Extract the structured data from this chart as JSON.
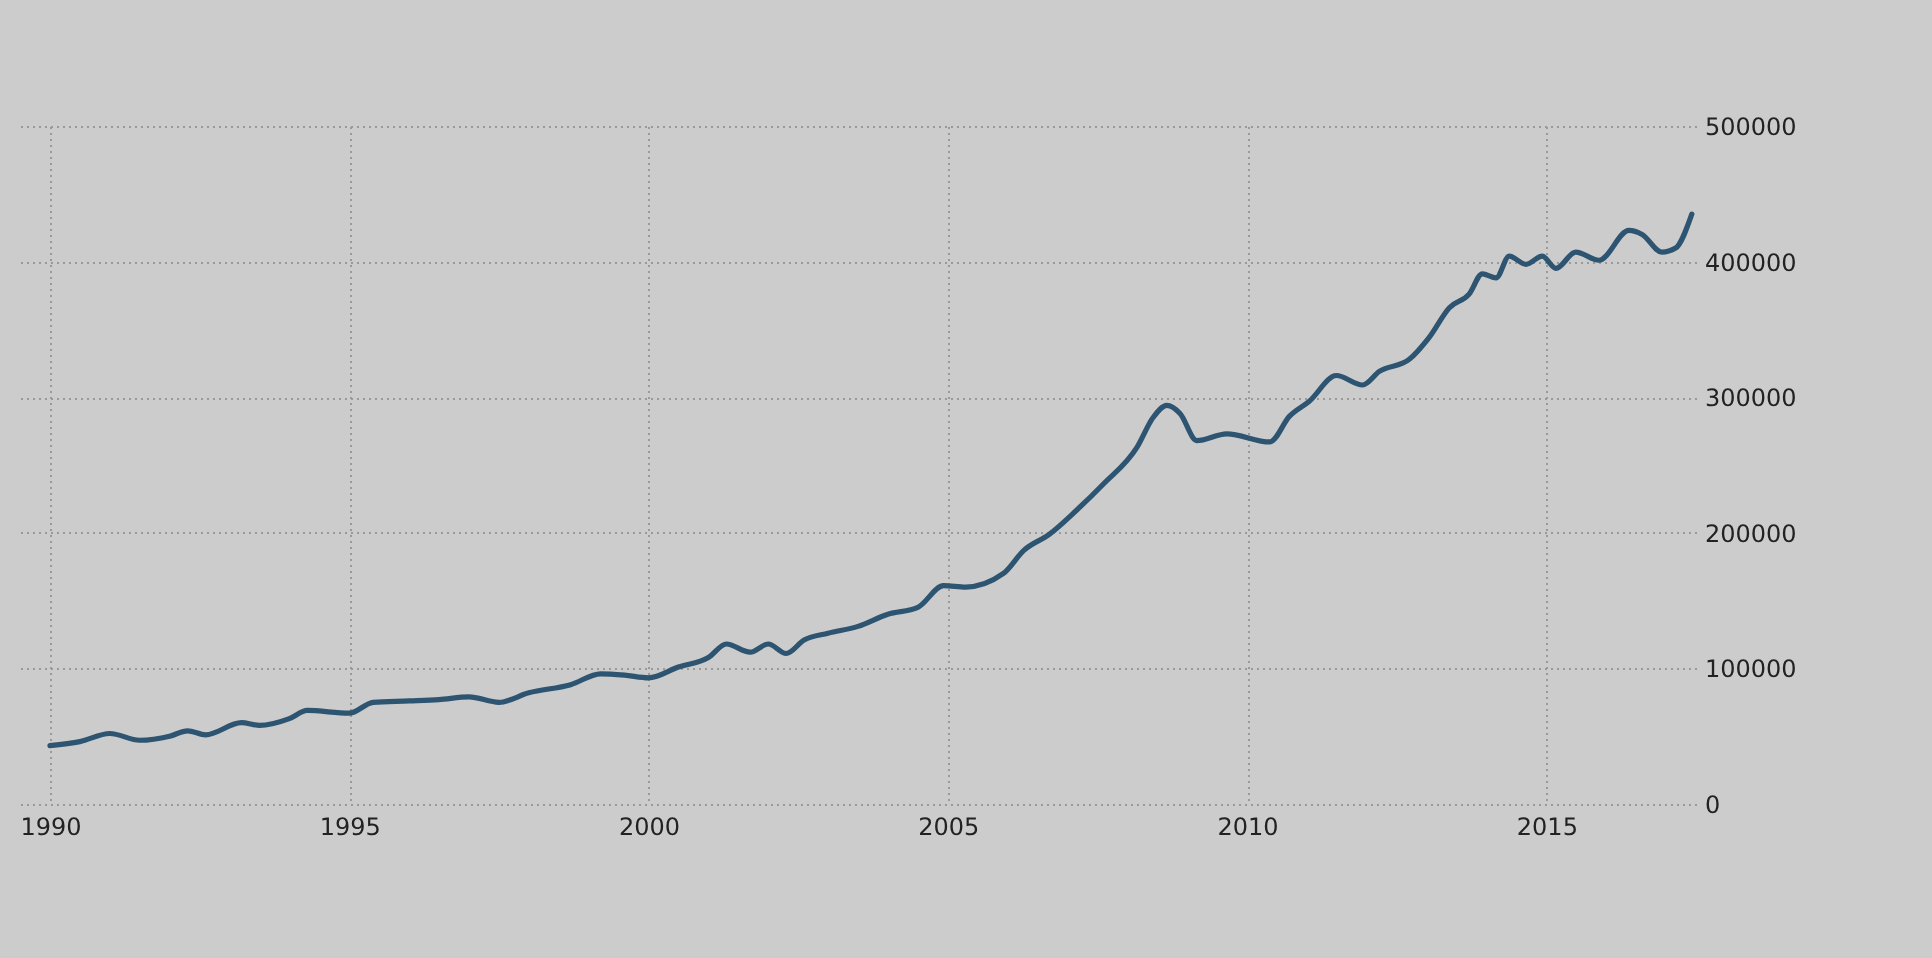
{
  "chart_data": {
    "type": "line",
    "x": [
      1990,
      1990.5,
      1991,
      1991.5,
      1992,
      1992.3,
      1992.6,
      1993.2,
      1993.5,
      1994,
      1994.3,
      1995,
      1995.4,
      1996,
      1996.5,
      1997,
      1997.5,
      1998,
      1998.7,
      1999.2,
      1999.6,
      2000,
      2000.5,
      2001,
      2001.3,
      2001.7,
      2002,
      2002.3,
      2002.6,
      2003,
      2003.5,
      2004,
      2004.5,
      2004.93,
      2005.3,
      2005.93,
      2006.27,
      2006.7,
      2007.16,
      2007.6,
      2008.16,
      2008.43,
      2008.66,
      2008.88,
      2009.16,
      2009.66,
      2010.38,
      2010.71,
      2011.04,
      2011.49,
      2011.93,
      2012.21,
      2012.71,
      2013.04,
      2013.38,
      2013.71,
      2013.93,
      2014.16,
      2014.38,
      2014.66,
      2014.93,
      2015.16,
      2015.49,
      2015.88,
      2016.38,
      2016.6,
      2016.93,
      2017.16,
      2017.43
    ],
    "series": [
      {
        "color": "#2d5470",
        "values": [
          43000,
          46000,
          52000,
          47000,
          50000,
          54000,
          51000,
          60000,
          58000,
          63000,
          69000,
          67000,
          75000,
          76000,
          77000,
          79000,
          75000,
          82000,
          88000,
          96000,
          95000,
          93000,
          101000,
          108000,
          118000,
          112000,
          118000,
          111000,
          121000,
          126000,
          131000,
          140000,
          145000,
          161000,
          160000,
          170000,
          187000,
          199000,
          217000,
          236000,
          263000,
          285000,
          294000,
          288000,
          268000,
          273000,
          267000,
          286000,
          297000,
          316000,
          309000,
          319000,
          328000,
          344000,
          366000,
          376000,
          391000,
          388000,
          404000,
          398000,
          404000,
          395000,
          407000,
          401000,
          423000,
          420000,
          407000,
          410000,
          435000
        ]
      }
    ],
    "xlim": [
      1989.5,
      2017.5
    ],
    "xticks": [
      1990,
      1995,
      2000,
      2005,
      2010,
      2015
    ],
    "ylim": [
      0,
      500000
    ],
    "yticks": [
      0,
      100000,
      200000,
      300000,
      400000,
      500000
    ],
    "grid": true,
    "line_style": "solid",
    "marker": "none"
  }
}
